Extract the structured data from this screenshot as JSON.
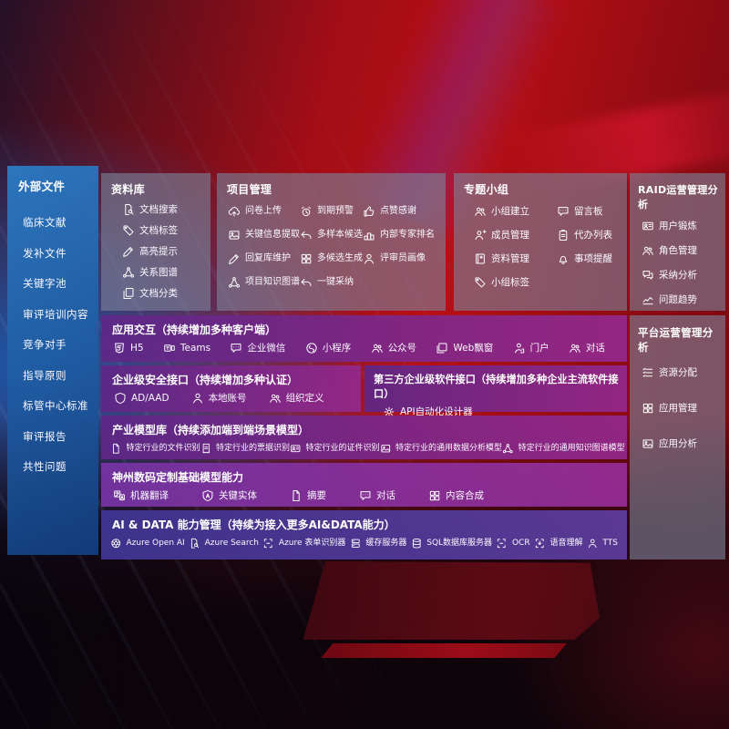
{
  "background": {
    "accent_red": "#b80f16",
    "accent_blue": "#1c5cb2",
    "row_purple": "#8e288c",
    "row_indigo": "#473a92"
  },
  "sidebar": {
    "title": "外部文件",
    "items": [
      "临床文献",
      "发补文件",
      "关键字池",
      "审评培训内容",
      "竞争对手",
      "指导原则",
      "标管中心标准",
      "审评报告",
      "共性问题"
    ]
  },
  "library_box": {
    "title": "资料库",
    "items": [
      {
        "icon": "doc-search",
        "label": "文档搜索"
      },
      {
        "icon": "tag",
        "label": "文档标签"
      },
      {
        "icon": "pencil",
        "label": "高亮提示"
      },
      {
        "icon": "network",
        "label": "关系图谱"
      },
      {
        "icon": "copy",
        "label": "文档分类"
      }
    ]
  },
  "project_box": {
    "title": "项目管理",
    "items": [
      {
        "icon": "cloud-upload",
        "label": "问卷上传"
      },
      {
        "icon": "alarm",
        "label": "到期预警"
      },
      {
        "icon": "thumbs-up",
        "label": "点赞感谢"
      },
      {
        "icon": "image-doc",
        "label": "关键信息提取"
      },
      {
        "icon": "reply",
        "label": "多样本候选"
      },
      {
        "icon": "podium",
        "label": "内部专家排名"
      },
      {
        "icon": "pencil",
        "label": "回复库维护"
      },
      {
        "icon": "grid",
        "label": "多候选生成"
      },
      {
        "icon": "person",
        "label": "评审员画像"
      },
      {
        "icon": "network",
        "label": "项目知识图谱"
      },
      {
        "icon": "reply",
        "label": "一键采纳"
      }
    ]
  },
  "group_box": {
    "title": "专题小组",
    "items": [
      {
        "icon": "people",
        "label": "小组建立"
      },
      {
        "icon": "bubble",
        "label": "留言板"
      },
      {
        "icon": "person-plus",
        "label": "成员管理"
      },
      {
        "icon": "clipboard",
        "label": "代办列表"
      },
      {
        "icon": "book",
        "label": "资料管理"
      },
      {
        "icon": "bell",
        "label": "事项提醒"
      },
      {
        "icon": "tag",
        "label": "小组标签"
      }
    ]
  },
  "raid_box": {
    "title": "RAID运营管理分析",
    "items": [
      {
        "icon": "id-card",
        "label": "用户锻炼"
      },
      {
        "icon": "people",
        "label": "角色管理"
      },
      {
        "icon": "chat-qa",
        "label": "采纳分析"
      },
      {
        "icon": "trend",
        "label": "问题趋势"
      }
    ]
  },
  "platform_box": {
    "title": "平台运营管理分析",
    "items": [
      {
        "icon": "list",
        "label": "资源分配"
      },
      {
        "icon": "grid",
        "label": "应用管理"
      },
      {
        "icon": "image-doc",
        "label": "应用分析"
      }
    ]
  },
  "interaction_row": {
    "title": "应用交互（持续增加多种客户端）",
    "items": [
      {
        "icon": "h5",
        "label": "H5"
      },
      {
        "icon": "teams",
        "label": "Teams"
      },
      {
        "icon": "bubble",
        "label": "企业微信"
      },
      {
        "icon": "miniprogram",
        "label": "小程序"
      },
      {
        "icon": "people",
        "label": "公众号"
      },
      {
        "icon": "window",
        "label": "Web飘窗"
      },
      {
        "icon": "portal",
        "label": "门户"
      },
      {
        "icon": "people",
        "label": "对话"
      }
    ]
  },
  "security_box": {
    "title": "企业级安全接口（持续增加多种认证）",
    "items": [
      {
        "icon": "shield",
        "label": "AD/AAD"
      },
      {
        "icon": "person",
        "label": "本地账号"
      },
      {
        "icon": "people",
        "label": "组织定义"
      }
    ]
  },
  "thirdparty_box": {
    "title": "第三方企业级软件接口（持续增加多种企业主流软件接口）",
    "items": [
      {
        "icon": "gear",
        "label": "API自动化设计器"
      }
    ]
  },
  "industry_row": {
    "title": "产业模型库（持续添加端到端场景模型）",
    "items": [
      {
        "icon": "doc",
        "label": "特定行业的文件识别"
      },
      {
        "icon": "receipt",
        "label": "特定行业的票据识别"
      },
      {
        "icon": "id-card",
        "label": "特定行业的证件识别"
      },
      {
        "icon": "image-doc",
        "label": "特定行业的通用数据分析模型"
      },
      {
        "icon": "network",
        "label": "特定行业的通用知识图谱模型"
      }
    ]
  },
  "basemodel_row": {
    "title": "神州数码定制基础模型能力",
    "items": [
      {
        "icon": "translate",
        "label": "机器翻译"
      },
      {
        "icon": "shield-a",
        "label": "关键实体"
      },
      {
        "icon": "doc",
        "label": "摘要"
      },
      {
        "icon": "bubble",
        "label": "对话"
      },
      {
        "icon": "grid",
        "label": "内容合成"
      }
    ]
  },
  "aidata_row": {
    "title": "AI & DATA 能力管理（持续为接入更多AI&DATA能力）",
    "items": [
      {
        "icon": "swirl",
        "label": "Azure Open AI"
      },
      {
        "icon": "doc-search",
        "label": "Azure Search"
      },
      {
        "icon": "scan",
        "label": "Azure 表单识别器"
      },
      {
        "icon": "server",
        "label": "缓存服务器"
      },
      {
        "icon": "db",
        "label": "SQL数据库服务器"
      },
      {
        "icon": "scan",
        "label": "OCR"
      },
      {
        "icon": "speech",
        "label": "语音理解"
      },
      {
        "icon": "person",
        "label": "TTS"
      }
    ]
  }
}
